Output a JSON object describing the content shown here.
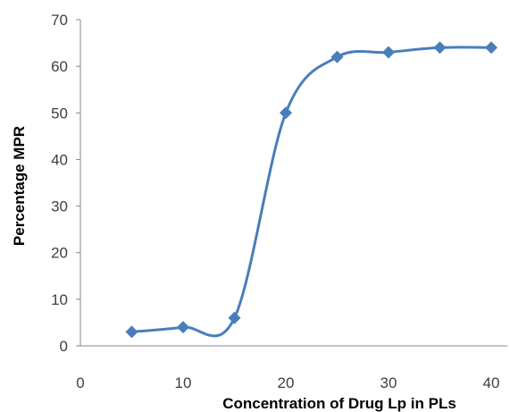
{
  "chart_data": {
    "type": "line",
    "smooth": true,
    "title": "",
    "xlabel": "Concentration of Drug Lp in PLs",
    "ylabel": "Percentage MPR",
    "xlim": [
      0,
      40
    ],
    "ylim": [
      0,
      70
    ],
    "xticks": [
      0,
      10,
      20,
      30,
      40
    ],
    "yticks": [
      0,
      10,
      20,
      30,
      40,
      50,
      60,
      70
    ],
    "grid": false,
    "legend": "none",
    "marker": "diamond",
    "color": "#4a7ebb",
    "series": [
      {
        "x": [
          5,
          10,
          15,
          20,
          25,
          30,
          35,
          40
        ],
        "y": [
          3,
          4,
          6,
          50,
          62,
          63,
          64,
          64
        ]
      }
    ]
  }
}
